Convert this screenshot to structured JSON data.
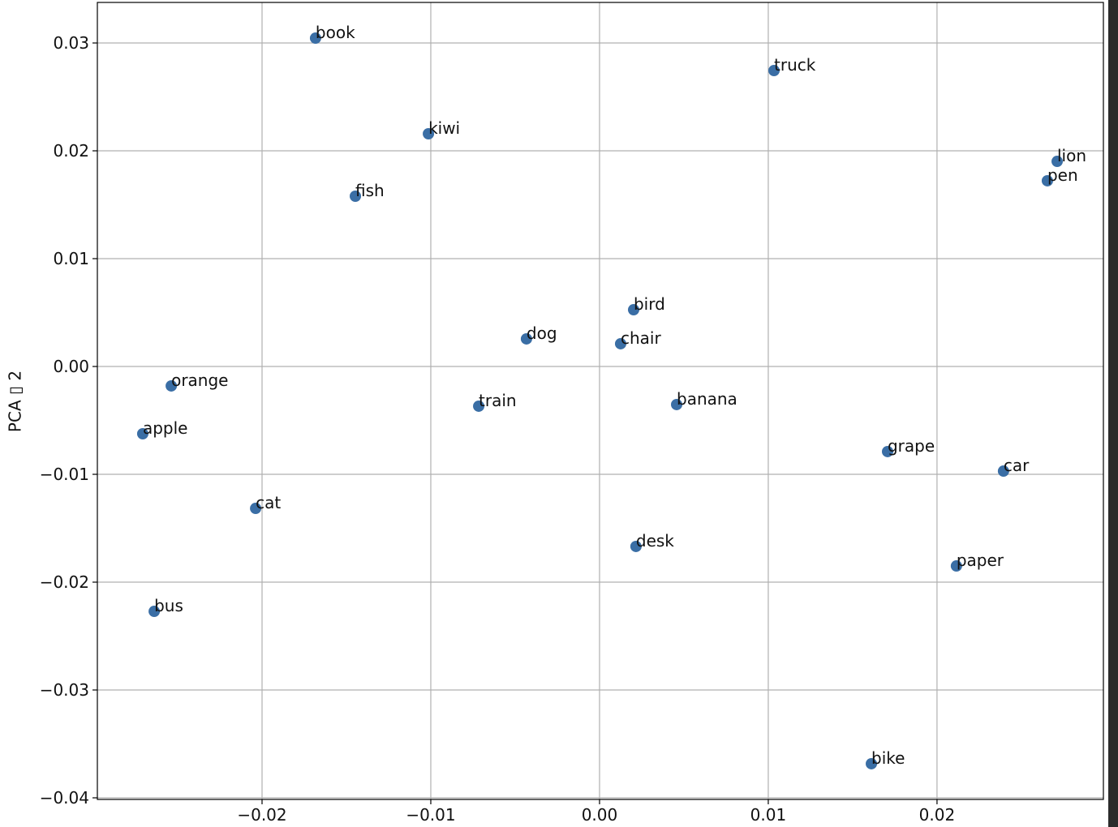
{
  "chart_data": {
    "type": "scatter",
    "ylabel": "PCA ▯ 2",
    "color": "#3a6ea5",
    "grid": true,
    "labels": [
      "book",
      "truck",
      "kiwi",
      "lion",
      "pen",
      "fish",
      "bird",
      "dog",
      "chair",
      "orange",
      "train",
      "banana",
      "apple",
      "grape",
      "car",
      "cat",
      "desk",
      "paper",
      "bus",
      "bike"
    ],
    "x": [
      -0.01683,
      0.01034,
      -0.01014,
      0.02712,
      0.02654,
      -0.01447,
      0.00202,
      -0.00433,
      0.00125,
      -0.02538,
      -0.00716,
      0.00457,
      -0.02707,
      0.01707,
      0.02394,
      -0.02038,
      0.00216,
      0.02115,
      -0.02639,
      0.01611
    ],
    "y": [
      0.03045,
      0.02744,
      0.02158,
      0.01902,
      0.01722,
      0.01579,
      0.00526,
      0.00256,
      0.00211,
      -0.0018,
      -0.00368,
      -0.00353,
      -0.00624,
      -0.00789,
      -0.0097,
      -0.01316,
      -0.01669,
      -0.0185,
      -0.02271,
      -0.03684
    ],
    "xlim": [
      -0.02976,
      0.02986
    ],
    "ylim": [
      -0.04015,
      0.03376
    ],
    "xticks": [
      {
        "value": -0.02,
        "label": "−0.02"
      },
      {
        "value": -0.01,
        "label": "−0.01"
      },
      {
        "value": 0,
        "label": "0.00"
      },
      {
        "value": 0.01,
        "label": "0.01"
      },
      {
        "value": 0.02,
        "label": "0.02"
      }
    ],
    "yticks": [
      {
        "value": -0.04,
        "label": "−0.04"
      },
      {
        "value": -0.03,
        "label": "−0.03"
      },
      {
        "value": -0.02,
        "label": "−0.02"
      },
      {
        "value": -0.01,
        "label": "−0.01"
      },
      {
        "value": 0,
        "label": "0.00"
      },
      {
        "value": 0.01,
        "label": "0.01"
      },
      {
        "value": 0.02,
        "label": "0.02"
      },
      {
        "value": 0.03,
        "label": "0.03"
      }
    ]
  }
}
